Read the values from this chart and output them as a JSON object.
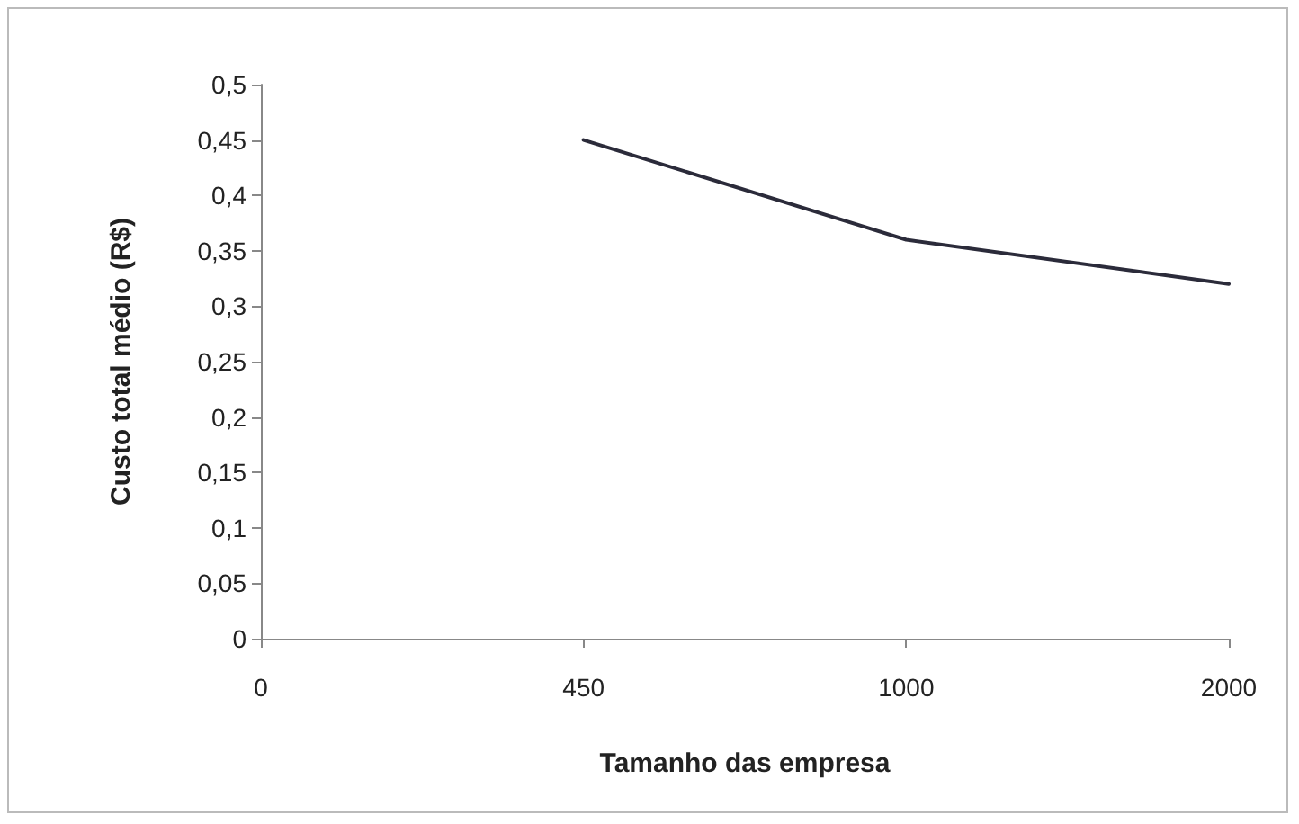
{
  "chart_data": {
    "type": "line",
    "xlabel": "Tamanho das empresa",
    "ylabel": "Custo total médio (R$)",
    "categories": [
      "0",
      "450",
      "1000",
      "2000"
    ],
    "series": [
      {
        "color": "#2b2b3a",
        "values": [
          null,
          0.45,
          0.36,
          0.32
        ]
      }
    ],
    "ylim": [
      0,
      0.5
    ],
    "yticks": [
      0,
      {
        "value": 0.05,
        "label": "0,05"
      },
      {
        "value": 0.1,
        "label": "0,1"
      },
      {
        "value": 0.15,
        "label": "0,15"
      },
      {
        "value": 0.2,
        "label": "0,2"
      },
      {
        "value": 0.25,
        "label": "0,25"
      },
      {
        "value": 0.3,
        "label": "0,3"
      },
      {
        "value": 0.35,
        "label": "0,35"
      },
      {
        "value": 0.4,
        "label": "0,4"
      },
      {
        "value": 0.45,
        "label": "0,45"
      },
      {
        "value": 0.5,
        "label": "0,5"
      }
    ],
    "grid": false,
    "marker": "none",
    "line_style": "solid"
  }
}
